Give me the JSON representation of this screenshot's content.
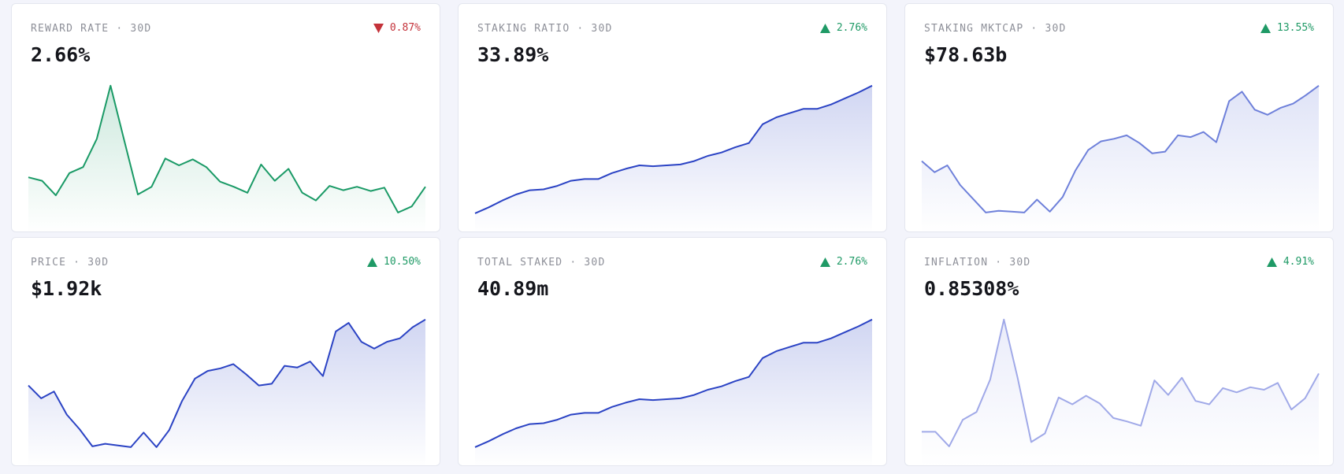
{
  "ylim": [
    0,
    170
  ],
  "cards": [
    {
      "label": "REWARD RATE · 30D",
      "value": "2.66%",
      "change": "0.87%",
      "direction": "down",
      "color": "#1a9a66",
      "series": [
        54,
        50,
        33,
        59,
        66,
        99,
        161,
        97,
        34,
        43,
        76,
        68,
        75,
        66,
        49,
        43,
        36,
        69,
        50,
        64,
        36,
        27,
        44,
        39,
        43,
        38,
        42,
        13,
        20,
        43
      ]
    },
    {
      "label": "STAKING RATIO · 30D",
      "value": "33.89%",
      "change": "2.76%",
      "direction": "up",
      "color": "#2b43c4",
      "series": [
        12,
        19,
        27,
        34,
        39,
        40,
        44,
        50,
        52,
        52,
        59,
        64,
        68,
        67,
        68,
        69,
        73,
        79,
        83,
        89,
        94,
        116,
        124,
        129,
        134,
        134,
        139,
        146,
        153,
        161
      ]
    },
    {
      "label": "STAKING MKTCAP · 30D",
      "value": "$78.63b",
      "change": "13.55%",
      "direction": "up",
      "color": "#6e80da",
      "series": [
        73,
        60,
        68,
        45,
        29,
        13,
        15,
        14,
        13,
        28,
        14,
        31,
        62,
        86,
        96,
        99,
        103,
        94,
        82,
        84,
        103,
        101,
        107,
        95,
        143,
        154,
        133,
        127,
        135,
        140,
        150,
        161
      ]
    },
    {
      "label": "PRICE · 30D",
      "value": "$1.92k",
      "change": "10.50%",
      "direction": "up",
      "color": "#2b43c4",
      "series": [
        84,
        69,
        77,
        50,
        33,
        13,
        16,
        14,
        12,
        29,
        12,
        32,
        66,
        92,
        101,
        104,
        109,
        97,
        84,
        86,
        107,
        105,
        112,
        95,
        147,
        157,
        135,
        127,
        135,
        139,
        152,
        161
      ]
    },
    {
      "label": "TOTAL STAKED · 30D",
      "value": "40.89m",
      "change": "2.76%",
      "direction": "up",
      "color": "#2b43c4",
      "series": [
        12,
        19,
        27,
        34,
        39,
        40,
        44,
        50,
        52,
        52,
        59,
        64,
        68,
        67,
        68,
        69,
        73,
        79,
        83,
        89,
        94,
        116,
        124,
        129,
        134,
        134,
        139,
        146,
        153,
        161
      ]
    },
    {
      "label": "INFLATION · 30D",
      "value": "0.85308%",
      "change": "4.91%",
      "direction": "up",
      "color": "#a0a9e8",
      "series": [
        30,
        30,
        13,
        44,
        53,
        91,
        161,
        93,
        18,
        28,
        70,
        62,
        72,
        63,
        46,
        42,
        37,
        90,
        73,
        93,
        66,
        62,
        81,
        76,
        82,
        79,
        87,
        56,
        69,
        98
      ]
    }
  ]
}
